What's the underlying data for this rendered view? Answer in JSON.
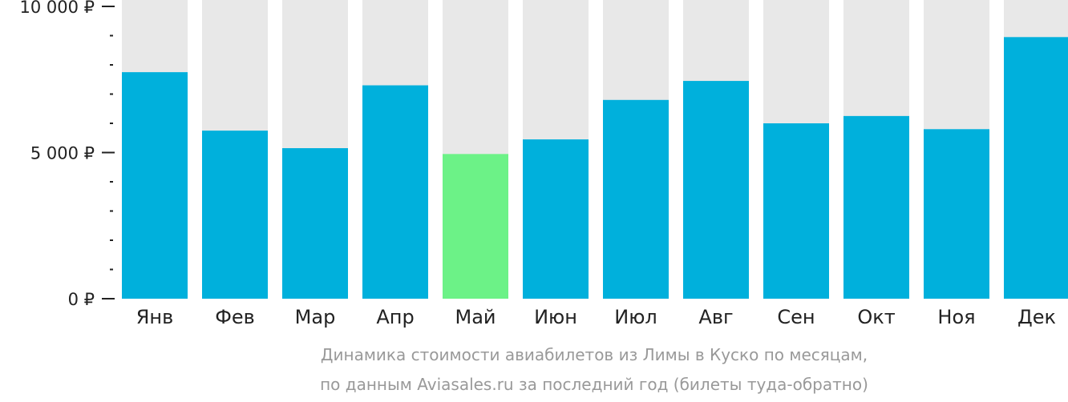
{
  "chart_data": {
    "type": "bar",
    "categories": [
      "Янв",
      "Фев",
      "Мар",
      "Апр",
      "Май",
      "Июн",
      "Июл",
      "Авг",
      "Сен",
      "Окт",
      "Ноя",
      "Дек"
    ],
    "values": [
      7750,
      5750,
      5150,
      7300,
      4950,
      5450,
      6800,
      7450,
      6000,
      6250,
      5800,
      8950
    ],
    "highlight_index": 4,
    "ylim": [
      0,
      10000
    ],
    "y_ticks": [
      {
        "value": 0,
        "label": "0 ₽"
      },
      {
        "value": 5000,
        "label": "5 000 ₽"
      },
      {
        "value": 10000,
        "label": "10 000 ₽"
      }
    ],
    "y_minor_step": 1000,
    "caption": [
      "Динамика стоимости авиабилетов из Лимы в Куско по месяцам,",
      "по данным Aviasales.ru за последний год (билеты туда-обратно)"
    ],
    "colors": {
      "bar": "#00b0dc",
      "highlight": "#6cf287",
      "background_bar": "#e8e8e8",
      "axis": "#222222",
      "caption": "#999999"
    }
  }
}
